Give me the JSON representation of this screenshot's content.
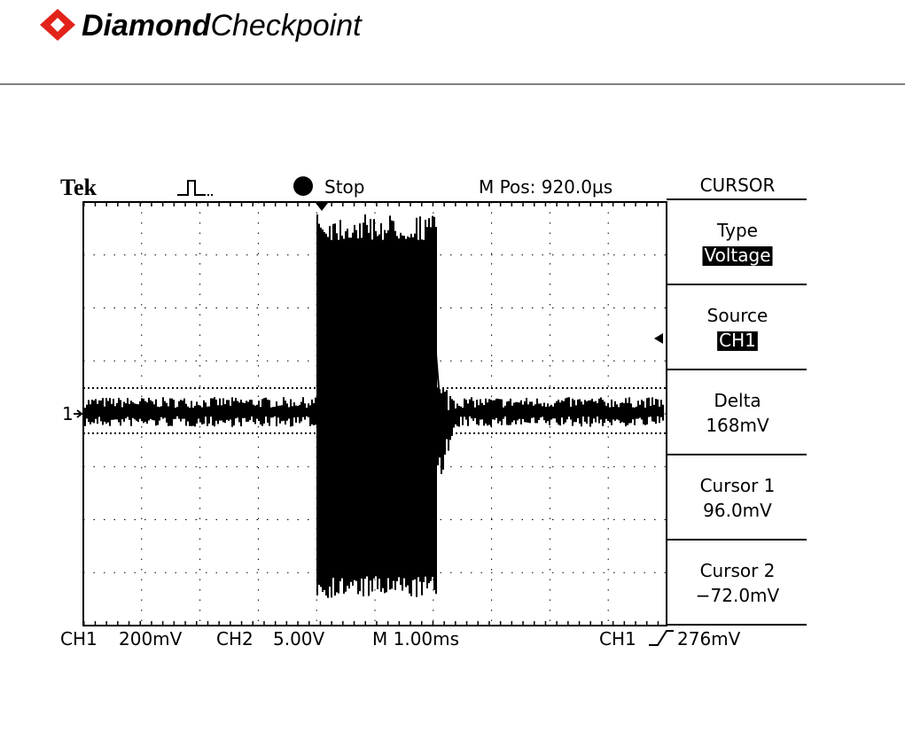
{
  "logo": {
    "bold": "Diamond",
    "light": "Checkpoint"
  },
  "scope": {
    "brand": "Tek",
    "status": "Stop",
    "position": "M Pos: 920.0µs",
    "channel_marker": "1",
    "menu": {
      "title": "CURSOR",
      "items": [
        {
          "label": "Type",
          "value": "Voltage",
          "highlight": true
        },
        {
          "label": "Source",
          "value": "CH1",
          "highlight": true
        },
        {
          "label": "Delta",
          "value": "168mV",
          "highlight": false
        },
        {
          "label": "Cursor 1",
          "value": "96.0mV",
          "highlight": false
        },
        {
          "label": "Cursor 2",
          "value": "−72.0mV",
          "highlight": false
        }
      ]
    },
    "readouts": {
      "ch1": "CH1",
      "ch1_scale": "200mV",
      "ch2": "CH2",
      "ch2_scale": "5.00V",
      "time": "M 1.00ms",
      "trig_source": "CH1",
      "trig_level": "276mV"
    }
  }
}
